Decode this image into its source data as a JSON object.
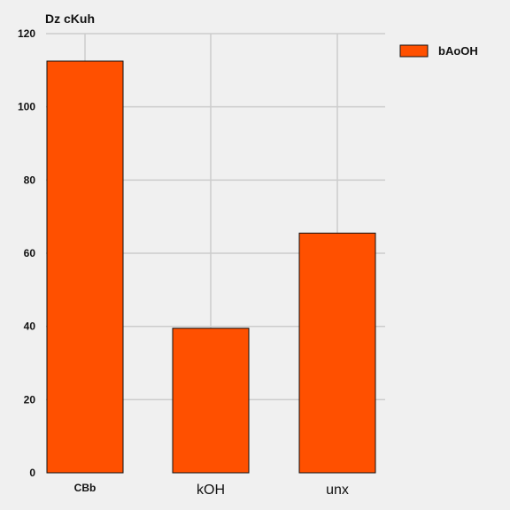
{
  "chart_data": {
    "type": "bar",
    "title": "Dz cKuh",
    "xlabel": "",
    "ylabel": "",
    "categories": [
      "CBb",
      "kOH",
      "unx"
    ],
    "series": [
      {
        "name": "bAoOH",
        "values": [
          112.5,
          39.5,
          65.5
        ],
        "color": "#ff5000"
      }
    ],
    "ylim": [
      0,
      120
    ],
    "yticks": [
      0,
      20,
      40,
      60,
      80,
      100,
      120
    ],
    "grid": true,
    "legend_position": "top-right",
    "grid_color": "#cccccc",
    "bar_edge_color": "#111111"
  }
}
